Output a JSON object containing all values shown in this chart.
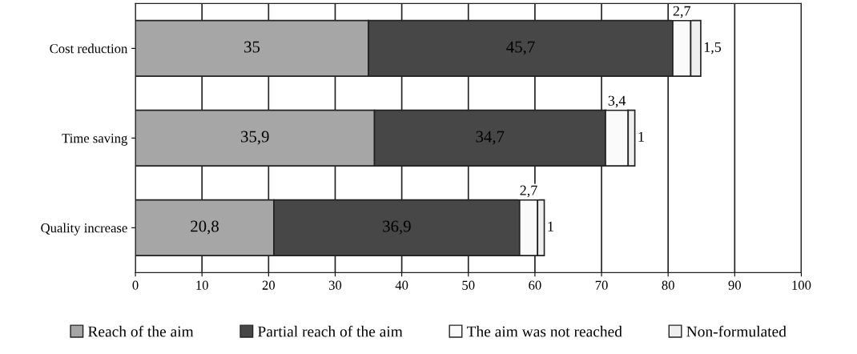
{
  "chart_data": {
    "type": "bar",
    "orientation": "horizontal",
    "stacked": true,
    "categories": [
      "Cost reduction",
      "Time saving",
      "Quality increase"
    ],
    "series": [
      {
        "name": "Reach of the aim",
        "color": "#a6a6a6",
        "values": [
          35,
          35.9,
          20.8
        ],
        "value_labels": [
          "35",
          "35,9",
          "20,8"
        ]
      },
      {
        "name": "Partial reach of the aim",
        "color": "#474747",
        "values": [
          45.7,
          34.7,
          36.9
        ],
        "value_labels": [
          "45,7",
          "34,7",
          "36,9"
        ]
      },
      {
        "name": "The aim was not reached",
        "color": "#fafafa",
        "values": [
          2.7,
          3.4,
          2.7
        ],
        "value_labels": [
          "2,7",
          "3,4",
          "2,7"
        ]
      },
      {
        "name": "Non-formulated",
        "color": "#efefef",
        "values": [
          1.5,
          1,
          1
        ],
        "value_labels": [
          "1,5",
          "1",
          "1"
        ]
      }
    ],
    "xlim": [
      0,
      100
    ],
    "xticks": [
      0,
      10,
      20,
      30,
      40,
      50,
      60,
      70,
      80,
      90,
      100
    ],
    "grid": "x",
    "legend": "bottom"
  }
}
